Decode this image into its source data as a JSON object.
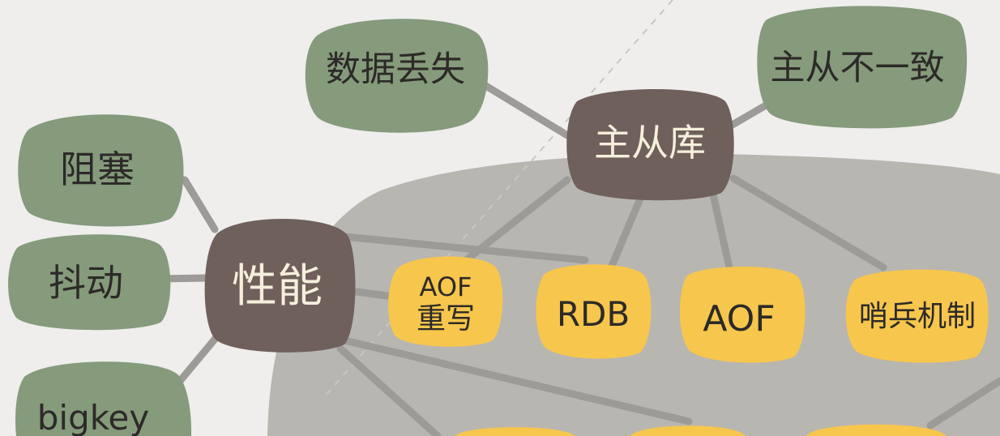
{
  "nodes": {
    "master_slave": "主从库",
    "performance": "性能",
    "data_loss": "数据丢失",
    "inconsistency": "主从不一致",
    "blocking": "阻塞",
    "jitter": "抖动",
    "bigkey": "bigkey",
    "aof_rewrite_line1": "AOF",
    "aof_rewrite_line2": "重写",
    "rdb": "RDB",
    "aof": "AOF",
    "sentinel": "哨兵机制"
  },
  "colors": {
    "background": "#efeeec",
    "region": "#b8b6b1",
    "green_node": "#859b7c",
    "brown_node": "#6f605b",
    "yellow_node": "#f7c64c",
    "connector": "#9d9b97",
    "dark_text": "#2c2a28",
    "light_text": "#f6efdc"
  }
}
